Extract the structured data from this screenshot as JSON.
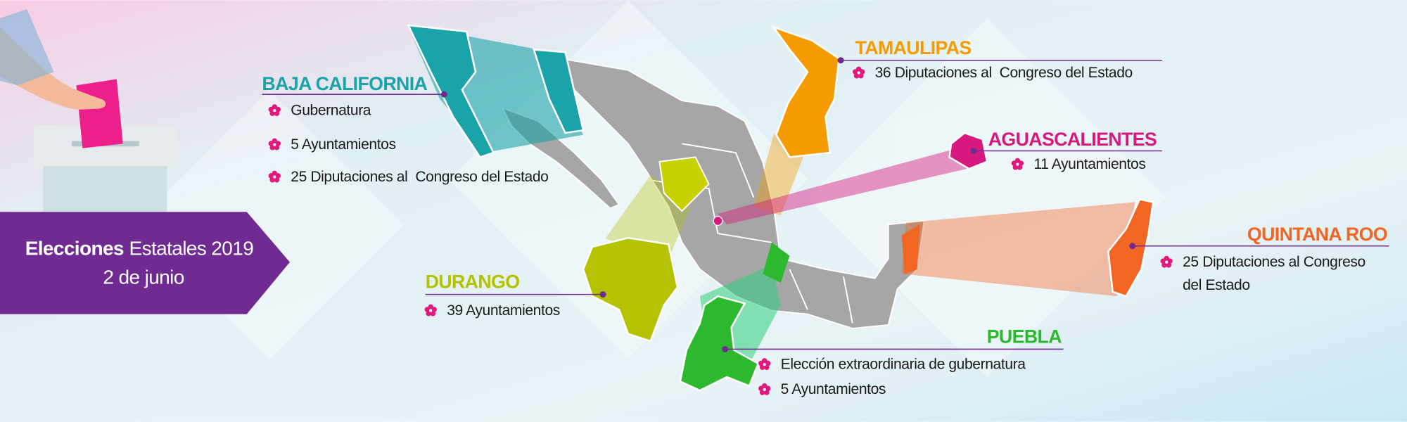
{
  "banner": {
    "title_bold": "Elecciones",
    "title_rest": "Estatales 2019",
    "date": "2 de junio"
  },
  "states": [
    {
      "name": "BAJA CALIFORNIA",
      "items": [
        "Gubernatura",
        "5 Ayuntamientos",
        "25 Diputaciones al  Congreso del Estado"
      ]
    },
    {
      "name": "TAMAULIPAS",
      "items": [
        "36 Diputaciones al  Congreso del Estado"
      ]
    },
    {
      "name": "AGUASCALIENTES",
      "items": [
        "11 Ayuntamientos"
      ]
    },
    {
      "name": "QUINTANA ROO",
      "items": [
        "25 Diputaciones al Congreso",
        "del Estado"
      ]
    },
    {
      "name": "DURANGO",
      "items": [
        "39 Ayuntamientos"
      ]
    },
    {
      "name": "PUEBLA",
      "items": [
        "Elección extraordinaria de gubernatura",
        "5 Ayuntamientos"
      ]
    }
  ]
}
